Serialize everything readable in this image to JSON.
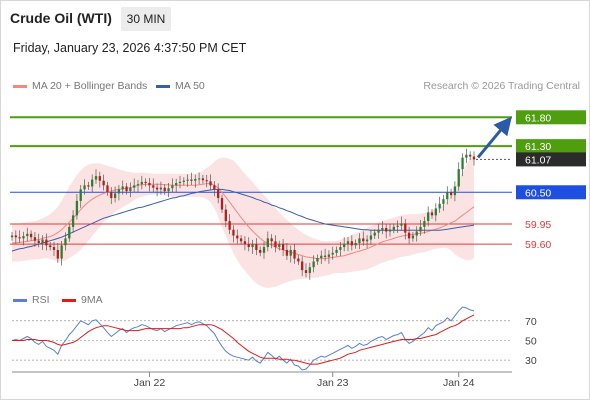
{
  "header": {
    "instrument": "Crude Oil (WTI)",
    "timeframe": "30 MIN",
    "datetime": "Friday, January 23, 2026 4:37:50 PM CET",
    "credit": "Research © 2026 Trading Central"
  },
  "legend": {
    "ma20": {
      "label": "MA 20 + Bollinger Bands",
      "color": "#f4877f"
    },
    "ma50": {
      "label": "MA 50",
      "color": "#3a5ea8"
    },
    "rsi": {
      "label": "RSI",
      "color": "#5b7fd6"
    },
    "ma9": {
      "label": "9MA",
      "color": "#e01b1b"
    }
  },
  "chart_data": [
    {
      "type": "candlestick",
      "x_ticks": [
        "Jan 22",
        "Jan 23",
        "Jan 24"
      ],
      "ylim": [
        59.1,
        62.1
      ],
      "levels": [
        {
          "value": 61.8,
          "label": "61.80",
          "kind": "resistance",
          "color": "#4f9e10"
        },
        {
          "value": 61.3,
          "label": "61.30",
          "kind": "resistance",
          "color": "#4f9e10"
        },
        {
          "value": 61.07,
          "label": "61.07",
          "kind": "last",
          "color": "#2b2b2b"
        },
        {
          "value": 60.5,
          "label": "60.50",
          "kind": "pivot",
          "color": "#1f4fe0"
        },
        {
          "value": 59.95,
          "label": "59.95",
          "kind": "support",
          "color": "#e23a3a"
        },
        {
          "value": 59.6,
          "label": "59.60",
          "kind": "support",
          "color": "#e23a3a"
        }
      ],
      "close": [
        59.75,
        59.72,
        59.7,
        59.74,
        59.78,
        59.72,
        59.66,
        59.62,
        59.68,
        59.58,
        59.55,
        59.5,
        59.35,
        59.58,
        59.7,
        59.9,
        60.1,
        60.35,
        60.55,
        60.62,
        60.6,
        60.72,
        60.78,
        60.7,
        60.62,
        60.5,
        60.4,
        60.48,
        60.55,
        60.6,
        60.52,
        60.58,
        60.62,
        60.64,
        60.68,
        60.66,
        60.62,
        60.58,
        60.55,
        60.58,
        60.52,
        60.57,
        60.62,
        60.66,
        60.68,
        60.7,
        60.72,
        60.7,
        60.73,
        60.74,
        60.71,
        60.69,
        60.62,
        60.55,
        60.4,
        60.2,
        60.0,
        59.85,
        59.75,
        59.7,
        59.65,
        59.6,
        59.55,
        59.6,
        59.5,
        59.45,
        59.55,
        59.7,
        59.65,
        59.55,
        59.6,
        59.5,
        59.4,
        59.5,
        59.35,
        59.3,
        59.15,
        59.1,
        59.2,
        59.3,
        59.36,
        59.4,
        59.38,
        59.42,
        59.45,
        59.5,
        59.55,
        59.6,
        59.65,
        59.58,
        59.62,
        59.7,
        59.65,
        59.68,
        59.75,
        59.8,
        59.85,
        59.88,
        59.82,
        59.85,
        59.9,
        59.92,
        59.96,
        59.8,
        59.7,
        59.75,
        59.82,
        59.9,
        60.0,
        60.15,
        60.1,
        60.22,
        60.3,
        60.38,
        60.5,
        60.45,
        60.6,
        60.9,
        61.1,
        61.15,
        61.12,
        61.07
      ],
      "ma20": [
        59.62,
        59.62,
        59.63,
        59.64,
        59.65,
        59.66,
        59.67,
        59.68,
        59.7,
        59.72,
        59.73,
        59.76,
        59.8,
        59.85,
        59.92,
        59.98,
        60.05,
        60.12,
        60.2,
        60.27,
        60.33,
        60.38,
        60.42,
        60.45,
        60.48,
        60.5,
        60.52,
        60.54,
        60.55,
        60.56,
        60.57,
        60.58,
        60.6,
        60.62,
        60.63,
        60.64,
        60.64,
        60.64,
        60.64,
        60.64,
        60.63,
        60.63,
        60.62,
        60.62,
        60.62,
        60.62,
        60.62,
        60.62,
        60.62,
        60.63,
        60.64,
        60.65,
        60.65,
        60.62,
        60.58,
        60.5,
        60.42,
        60.33,
        60.24,
        60.15,
        60.06,
        59.98,
        59.9,
        59.83,
        59.76,
        59.7,
        59.65,
        59.61,
        59.58,
        59.55,
        59.52,
        59.5,
        59.48,
        59.46,
        59.44,
        59.42,
        59.4,
        59.38,
        59.37,
        59.36,
        59.35,
        59.35,
        59.35,
        59.36,
        59.37,
        59.38,
        59.39,
        59.4,
        59.42,
        59.44,
        59.46,
        59.48,
        59.5,
        59.52,
        59.55,
        59.58,
        59.61,
        59.64,
        59.66,
        59.68,
        59.7,
        59.72,
        59.74,
        59.75,
        59.76,
        59.77,
        59.78,
        59.79,
        59.8,
        59.82,
        59.84,
        59.86,
        59.88,
        59.91,
        59.94,
        59.97,
        60.0,
        60.05,
        60.1,
        60.15,
        60.2,
        60.25
      ],
      "bb_upper": [
        59.95,
        59.95,
        59.96,
        59.97,
        59.98,
        59.99,
        60.0,
        60.02,
        60.05,
        60.08,
        60.12,
        60.18,
        60.25,
        60.35,
        60.48,
        60.6,
        60.7,
        60.8,
        60.88,
        60.94,
        60.98,
        61.0,
        61.0,
        61.0,
        60.98,
        60.96,
        60.94,
        60.92,
        60.9,
        60.88,
        60.86,
        60.85,
        60.84,
        60.84,
        60.84,
        60.84,
        60.83,
        60.82,
        60.82,
        60.82,
        60.82,
        60.82,
        60.82,
        60.82,
        60.82,
        60.82,
        60.82,
        60.82,
        60.82,
        60.84,
        60.87,
        60.92,
        60.97,
        61.03,
        61.08,
        61.1,
        61.1,
        61.08,
        61.05,
        60.98,
        60.9,
        60.82,
        60.75,
        60.68,
        60.6,
        60.52,
        60.45,
        60.38,
        60.3,
        60.22,
        60.15,
        60.08,
        60.02,
        59.96,
        59.9,
        59.85,
        59.8,
        59.76,
        59.73,
        59.7,
        59.68,
        59.66,
        59.65,
        59.65,
        59.65,
        59.66,
        59.68,
        59.7,
        59.73,
        59.76,
        59.79,
        59.82,
        59.85,
        59.88,
        59.91,
        59.94,
        59.97,
        60.0,
        60.02,
        60.04,
        60.06,
        60.08,
        60.1,
        60.11,
        60.12,
        60.12,
        60.12,
        60.13,
        60.14,
        60.16,
        60.18,
        60.2,
        60.23,
        60.28,
        60.35,
        60.45,
        60.58,
        60.72,
        60.85,
        60.98,
        61.08,
        61.14
      ],
      "bb_lower": [
        59.3,
        59.3,
        59.3,
        59.31,
        59.32,
        59.33,
        59.34,
        59.34,
        59.35,
        59.36,
        59.34,
        59.32,
        59.3,
        59.3,
        59.32,
        59.36,
        59.4,
        59.44,
        59.5,
        59.58,
        59.66,
        59.74,
        59.82,
        59.9,
        59.98,
        60.04,
        60.1,
        60.16,
        60.2,
        60.24,
        60.28,
        60.32,
        60.36,
        60.4,
        60.42,
        60.44,
        60.45,
        60.46,
        60.46,
        60.46,
        60.44,
        60.44,
        60.42,
        60.42,
        60.42,
        60.42,
        60.42,
        60.42,
        60.42,
        60.42,
        60.41,
        60.38,
        60.33,
        60.22,
        60.08,
        59.9,
        59.74,
        59.58,
        59.44,
        59.32,
        59.22,
        59.14,
        59.06,
        58.98,
        58.92,
        58.88,
        58.85,
        58.84,
        58.85,
        58.86,
        58.89,
        58.92,
        58.94,
        58.96,
        58.98,
        58.99,
        59.0,
        59.0,
        59.01,
        59.02,
        59.02,
        59.04,
        59.05,
        59.07,
        59.09,
        59.1,
        59.1,
        59.1,
        59.11,
        59.12,
        59.13,
        59.14,
        59.15,
        59.16,
        59.19,
        59.22,
        59.25,
        59.28,
        59.3,
        59.32,
        59.34,
        59.36,
        59.38,
        59.39,
        59.4,
        59.42,
        59.44,
        59.45,
        59.46,
        59.48,
        59.5,
        59.52,
        59.53,
        59.54,
        59.53,
        59.49,
        59.42,
        59.38,
        59.35,
        59.32,
        59.32,
        59.36
      ],
      "ma50": [
        59.48,
        59.5,
        59.52,
        59.53,
        59.55,
        59.56,
        59.58,
        59.6,
        59.62,
        59.64,
        59.66,
        59.68,
        59.7,
        59.72,
        59.75,
        59.78,
        59.81,
        59.84,
        59.87,
        59.9,
        59.93,
        59.96,
        59.99,
        60.02,
        60.05,
        60.07,
        60.09,
        60.11,
        60.13,
        60.15,
        60.17,
        60.19,
        60.21,
        60.23,
        60.24,
        60.26,
        60.28,
        60.3,
        60.32,
        60.34,
        60.36,
        60.38,
        60.4,
        60.41,
        60.43,
        60.44,
        60.46,
        60.48,
        60.49,
        60.51,
        60.52,
        60.53,
        60.54,
        60.55,
        60.55,
        60.55,
        60.54,
        60.53,
        60.51,
        60.49,
        60.47,
        60.45,
        60.43,
        60.41,
        60.38,
        60.36,
        60.33,
        60.31,
        60.28,
        60.26,
        60.23,
        60.21,
        60.18,
        60.16,
        60.13,
        60.1,
        60.08,
        60.05,
        60.03,
        60.01,
        59.99,
        59.97,
        59.95,
        59.94,
        59.93,
        59.92,
        59.91,
        59.9,
        59.89,
        59.88,
        59.87,
        59.86,
        59.85,
        59.85,
        59.84,
        59.84,
        59.84,
        59.84,
        59.84,
        59.84,
        59.84,
        59.84,
        59.84,
        59.84,
        59.84,
        59.84,
        59.84,
        59.84,
        59.84,
        59.84,
        59.84,
        59.84,
        59.84,
        59.85,
        59.86,
        59.87,
        59.88,
        59.89,
        59.9,
        59.91,
        59.92,
        59.93
      ]
    },
    {
      "type": "line",
      "ylim": [
        20,
        85
      ],
      "y_ticks": [
        70,
        50,
        30
      ],
      "reference_lines": [
        70,
        50,
        30
      ],
      "series": [
        {
          "name": "RSI",
          "values": [
            50,
            51,
            50,
            52,
            54,
            52,
            48,
            46,
            49,
            44,
            42,
            40,
            36,
            45,
            50,
            56,
            60,
            65,
            70,
            68,
            66,
            70,
            71,
            67,
            63,
            58,
            54,
            57,
            60,
            62,
            58,
            61,
            63,
            64,
            66,
            65,
            63,
            61,
            60,
            62,
            59,
            61,
            63,
            65,
            66,
            67,
            68,
            66,
            68,
            69,
            67,
            65,
            61,
            57,
            50,
            44,
            39,
            36,
            34,
            33,
            32,
            31,
            30,
            33,
            29,
            27,
            32,
            38,
            35,
            31,
            34,
            30,
            27,
            31,
            25,
            24,
            20,
            21,
            25,
            30,
            32,
            34,
            33,
            35,
            37,
            39,
            41,
            43,
            45,
            42,
            44,
            47,
            45,
            46,
            49,
            51,
            53,
            54,
            51,
            53,
            55,
            56,
            58,
            51,
            47,
            49,
            52,
            55,
            58,
            63,
            60,
            65,
            67,
            69,
            73,
            70,
            75,
            80,
            84,
            83,
            81,
            80
          ]
        },
        {
          "name": "9MA",
          "values": [
            50,
            50,
            50,
            50,
            51,
            51,
            51,
            50,
            50,
            50,
            49,
            48,
            46,
            45,
            46,
            47,
            48,
            50,
            53,
            56,
            59,
            61,
            63,
            64,
            65,
            65,
            64,
            63,
            62,
            61,
            60,
            60,
            60,
            60,
            61,
            62,
            62,
            62,
            62,
            62,
            62,
            62,
            62,
            62,
            62,
            63,
            63,
            64,
            65,
            66,
            66,
            66,
            66,
            65,
            63,
            61,
            58,
            55,
            52,
            48,
            45,
            42,
            39,
            37,
            35,
            33,
            32,
            32,
            32,
            32,
            31,
            31,
            31,
            30,
            30,
            29,
            28,
            27,
            26,
            26,
            26,
            27,
            28,
            29,
            30,
            31,
            32,
            34,
            36,
            37,
            38,
            40,
            41,
            42,
            43,
            44,
            45,
            46,
            47,
            48,
            49,
            50,
            51,
            51,
            51,
            51,
            52,
            52,
            53,
            54,
            55,
            56,
            58,
            60,
            62,
            64,
            65,
            67,
            70,
            72,
            74,
            76
          ]
        }
      ]
    }
  ]
}
